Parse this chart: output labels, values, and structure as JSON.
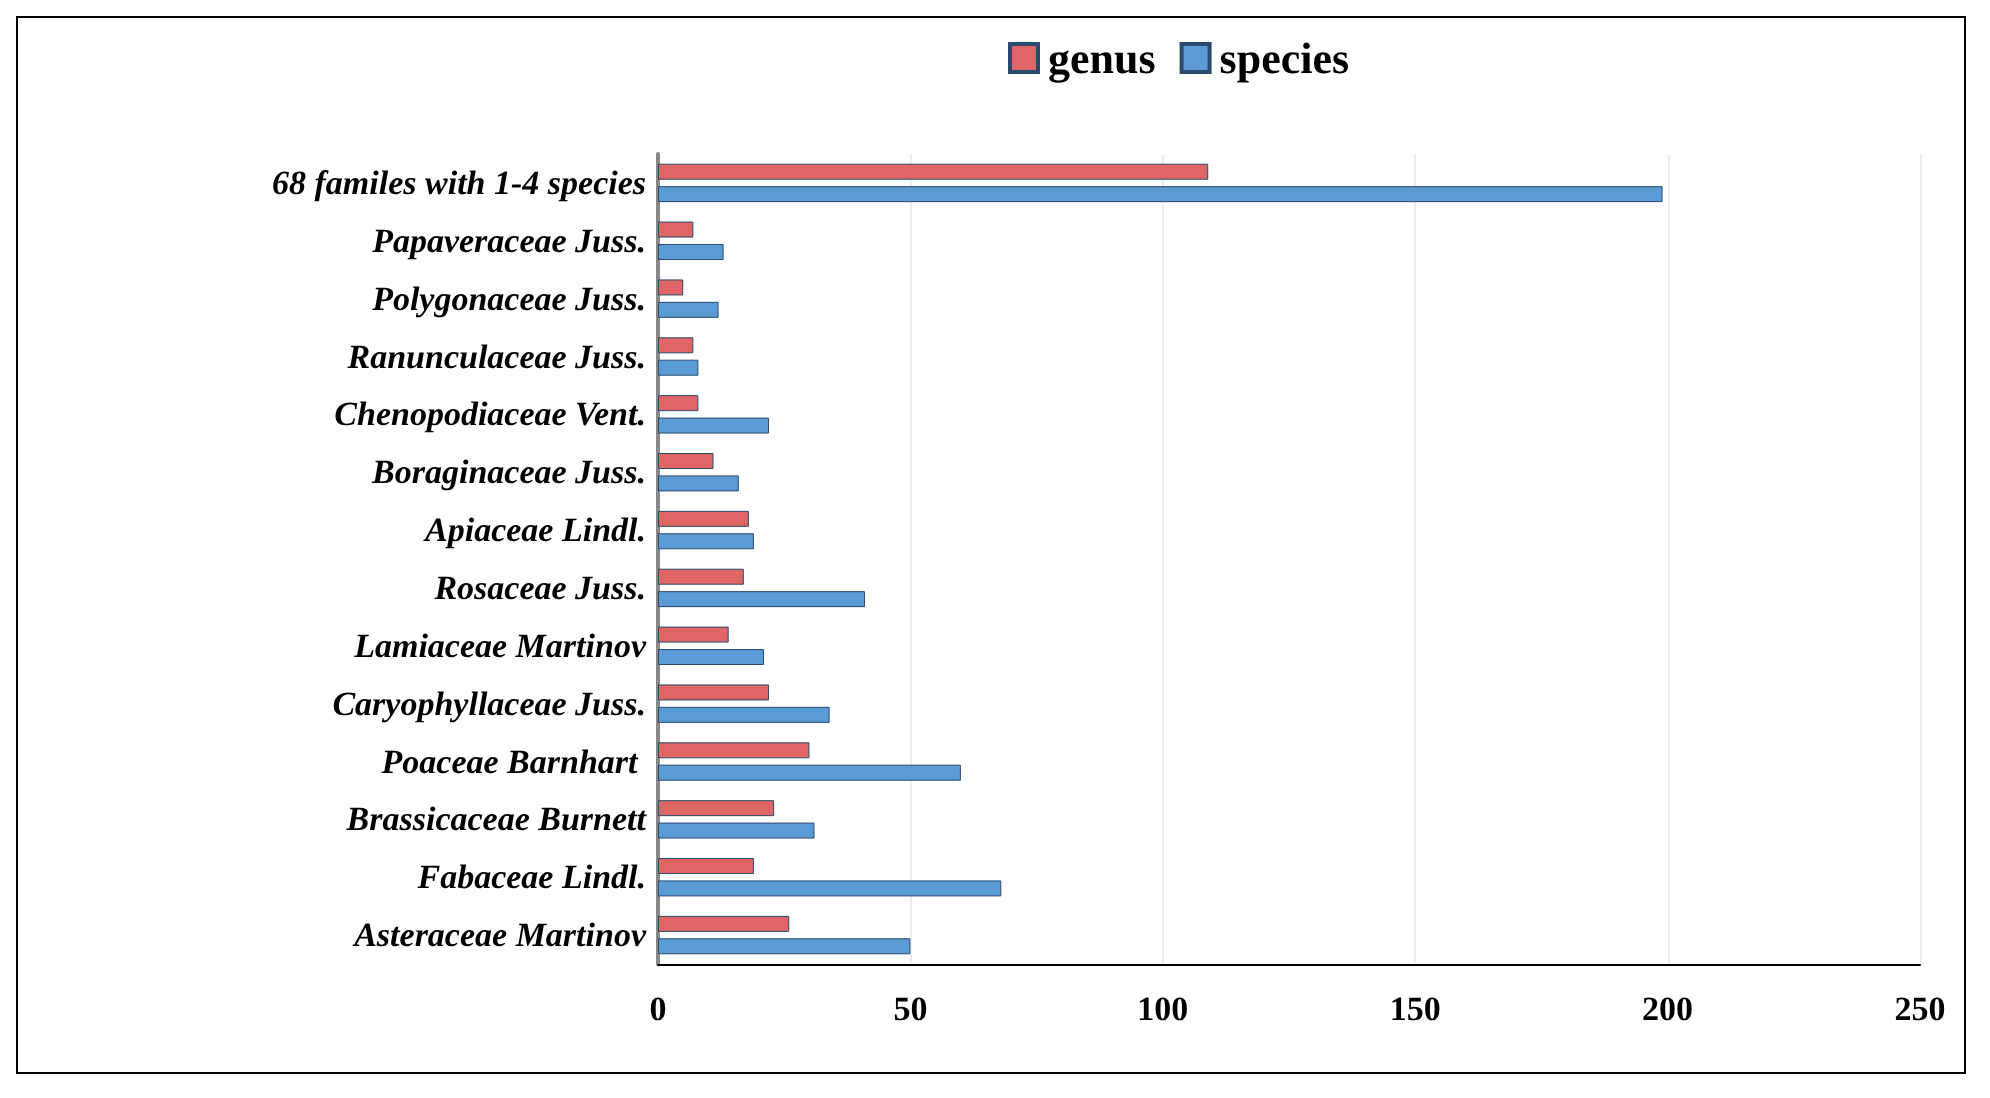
{
  "chart_data": {
    "type": "bar",
    "orientation": "horizontal",
    "categories": [
      "68 familes with 1-4 species",
      "Papaveraceae Juss.",
      "Polygonaceae Juss.",
      "Ranunculaceae Juss.",
      "Chenopodiaceae Vent.",
      "Boraginaceae Juss.",
      "Apiaceae Lindl.",
      "Rosaceae Juss.",
      "Lamiaceae Martinov",
      "Caryophyllaceae Juss.",
      "Poaceae Barnhart ",
      "Brassicaceae Burnett",
      "Fabaceae Lindl.",
      "Asteraceae Martinov"
    ],
    "series": [
      {
        "name": "genus",
        "color": "#e06666",
        "values": [
          109,
          7,
          5,
          7,
          8,
          11,
          18,
          17,
          14,
          22,
          30,
          23,
          19,
          26
        ]
      },
      {
        "name": "species",
        "color": "#5b9bd5",
        "values": [
          199,
          13,
          12,
          8,
          22,
          16,
          19,
          41,
          21,
          34,
          60,
          31,
          68,
          50
        ]
      }
    ],
    "xlim": [
      0,
      250
    ],
    "xticks": [
      0,
      50,
      100,
      150,
      200,
      250
    ],
    "grid": "x",
    "legend": "top"
  }
}
